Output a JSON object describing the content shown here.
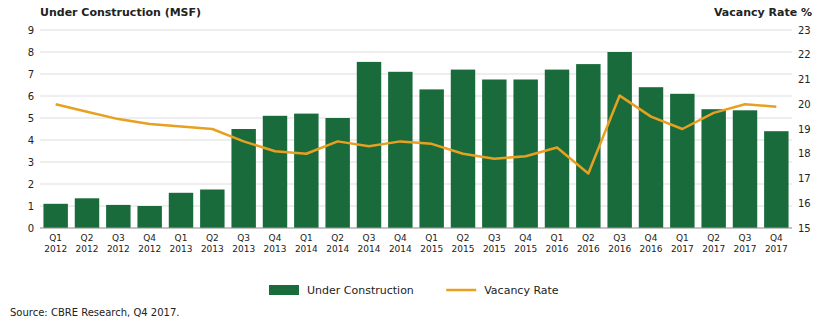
{
  "chart_data": {
    "type": "bar",
    "categories": [
      "Q1\n2012",
      "Q2\n2012",
      "Q3\n2012",
      "Q4\n2012",
      "Q1\n2013",
      "Q2\n2013",
      "Q3\n2013",
      "Q4\n2013",
      "Q1\n2014",
      "Q2\n2014",
      "Q3\n2014",
      "Q4\n2014",
      "Q1\n2015",
      "Q2\n2015",
      "Q3\n2015",
      "Q4\n2015",
      "Q1\n2016",
      "Q2\n2016",
      "Q3\n2016",
      "Q4\n2016",
      "Q1\n2017",
      "Q2\n2017",
      "Q3\n2017",
      "Q4\n2017"
    ],
    "series": [
      {
        "name": "Under Construction",
        "type": "bar",
        "color": "#1a6b3c",
        "values": [
          1.1,
          1.35,
          1.05,
          1.0,
          1.6,
          1.75,
          4.5,
          5.1,
          5.2,
          5.0,
          7.55,
          7.1,
          6.3,
          7.2,
          6.75,
          6.75,
          7.2,
          7.45,
          8.0,
          6.4,
          6.1,
          5.4,
          5.35,
          4.4
        ]
      },
      {
        "name": "Vacancy Rate",
        "type": "line",
        "color": "#e8a020",
        "axis": "y2",
        "values": [
          20.0,
          19.7,
          19.4,
          19.2,
          19.1,
          19.0,
          18.5,
          18.1,
          18.0,
          18.5,
          18.3,
          18.5,
          18.4,
          18.0,
          17.8,
          17.9,
          18.25,
          17.2,
          20.35,
          19.5,
          19.0,
          19.65,
          20.0,
          19.9
        ]
      }
    ],
    "y_label": "Under Construction (MSF)",
    "y2_label": "Vacancy Rate %",
    "ylim": [
      0,
      9
    ],
    "yticks": [
      0,
      1,
      2,
      3,
      4,
      5,
      6,
      7,
      8,
      9
    ],
    "y2lim": [
      15,
      23
    ],
    "y2ticks": [
      15,
      16,
      17,
      18,
      19,
      20,
      21,
      22,
      23
    ],
    "annotations": [
      "Source: CBRE Research, Q4 2017."
    ],
    "grid": true,
    "legend": "bottom"
  }
}
